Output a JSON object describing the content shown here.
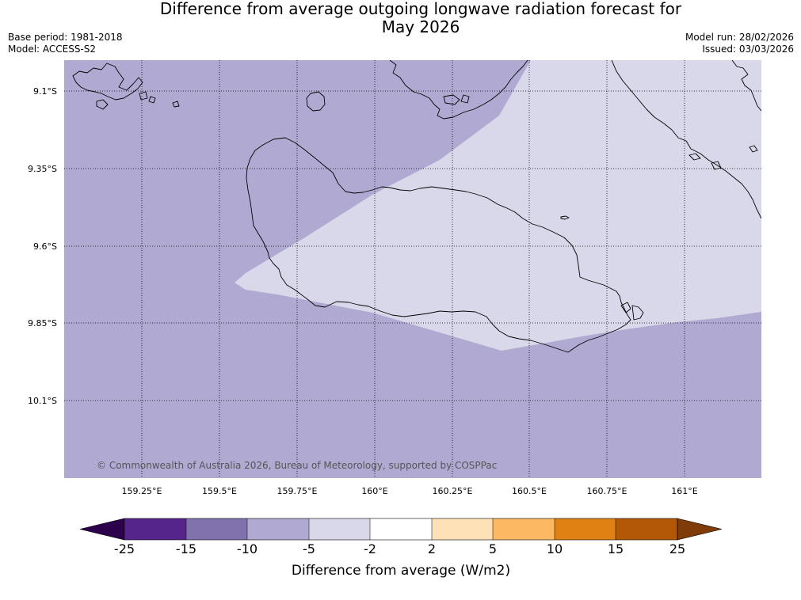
{
  "title_line1": "Difference from average outgoing longwave radiation forecast for",
  "title_line2": "May 2026",
  "base_period": "Base period: 1981-2018",
  "model": "Model: ACCESS-S2",
  "model_run": "Model run: 28/02/2026",
  "issued": "Issued: 03/03/2026",
  "credit": "© Commonwealth of Australia 2026, Bureau of Meteorology, supported by COSPPac",
  "map": {
    "lat_labels": [
      "9.1°S",
      "9.35°S",
      "9.6°S",
      "9.85°S",
      "10.1°S"
    ],
    "lon_labels": [
      "159.25°E",
      "159.5°E",
      "159.75°E",
      "160°E",
      "160.25°E",
      "160.5°E",
      "160.75°E",
      "161°E"
    ],
    "colors": {
      "minus10_to_minus5": "#b0aad2",
      "minus5_to_minus2": "#d8d8ea",
      "coastline": "#000000"
    }
  },
  "colorbar": {
    "label": "Difference from average (W/m2)",
    "ticks": [
      "-25",
      "-15",
      "-10",
      "-5",
      "-2",
      "2",
      "5",
      "10",
      "15",
      "25"
    ],
    "colors": [
      "#56258c",
      "#8172ae",
      "#b0aad2",
      "#d8d8ea",
      "#ffffff",
      "#ffe1b8",
      "#fdb863",
      "#e08114",
      "#b35806"
    ],
    "under_color": "#2d004b",
    "over_color": "#7f3b08"
  }
}
